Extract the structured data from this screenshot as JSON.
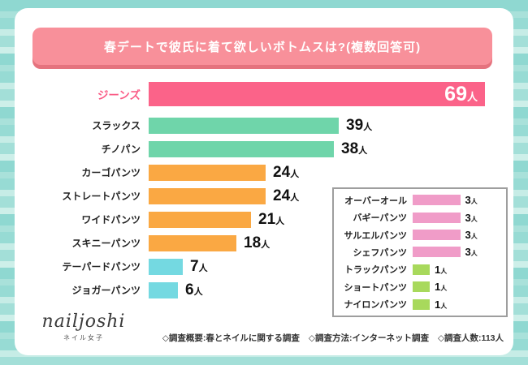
{
  "header": {
    "title": "春デートで彼氏に着て欲しいボトムスは?(複数回答可)"
  },
  "chart_data": {
    "type": "bar",
    "orientation": "horizontal",
    "title": "春デートで彼氏に着て欲しいボトムスは?(複数回答可)",
    "unit": "人",
    "main_series": {
      "categories": [
        "ジーンズ",
        "スラックス",
        "チノパン",
        "カーゴパンツ",
        "ストレートパンツ",
        "ワイドパンツ",
        "スキニーパンツ",
        "テーパードパンツ",
        "ジョガーパンツ"
      ],
      "values": [
        69,
        39,
        38,
        24,
        24,
        21,
        18,
        7,
        6
      ],
      "colors": [
        "#FB6389",
        "#6FD5AA",
        "#6FD5AA",
        "#FAA843",
        "#FAA843",
        "#FAA843",
        "#FAA843",
        "#74D9E1",
        "#74D9E1"
      ],
      "highlight_index": 0
    },
    "inset_series": {
      "categories": [
        "オーバーオール",
        "バギーパンツ",
        "サルエルパンツ",
        "シェフパンツ",
        "トラックパンツ",
        "ショートパンツ",
        "ナイロンパンツ"
      ],
      "values": [
        3,
        3,
        3,
        3,
        1,
        1,
        1
      ],
      "colors": [
        "#F09CC8",
        "#F09CC8",
        "#F09CC8",
        "#F09CC8",
        "#A8D95C",
        "#A8D95C",
        "#A8D95C"
      ]
    },
    "legend": "none",
    "grid": false
  },
  "logo": {
    "name": "nailjoshi",
    "subtitle": "ネイル女子"
  },
  "footer": {
    "items": [
      "◇調査概要:春とネイルに関する調査",
      "◇調査方法:インターネット調査",
      "◇調査人数:113人"
    ]
  }
}
